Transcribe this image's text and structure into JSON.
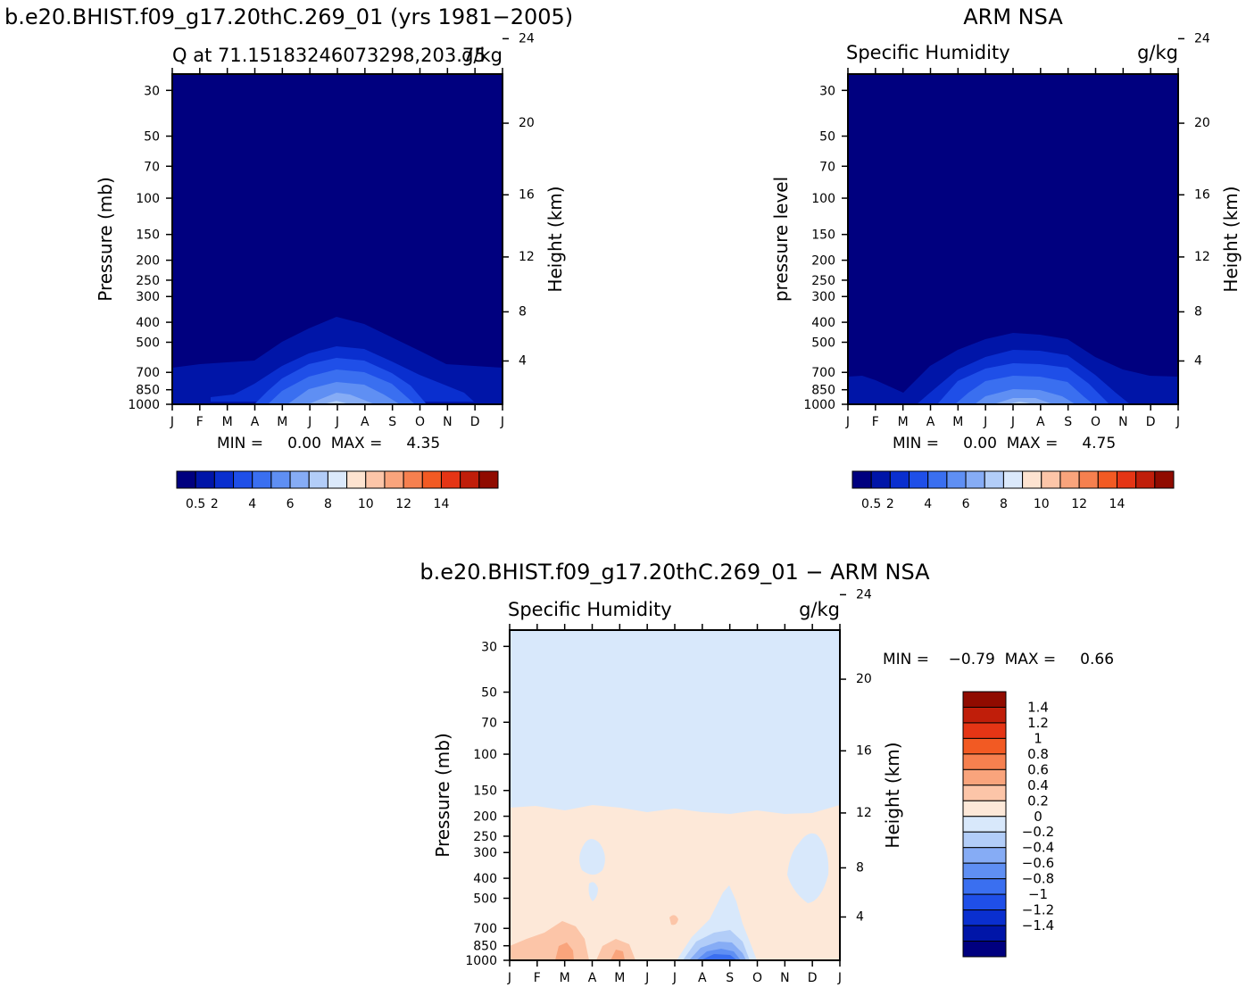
{
  "months": [
    "J",
    "F",
    "M",
    "A",
    "M",
    "J",
    "J",
    "A",
    "S",
    "O",
    "N",
    "D",
    "J"
  ],
  "pressure_ticks": [
    "30",
    "50",
    "70",
    "100",
    "150",
    "200",
    "250",
    "300",
    "400",
    "500",
    "700",
    "850",
    "1000"
  ],
  "height_ticks": [
    "24",
    "20",
    "16",
    "12",
    "8",
    "4"
  ],
  "colors": {
    "abs_levels": [
      "#00007f",
      "#0015a8",
      "#0a2fcf",
      "#1f4fe8",
      "#3a6ff0",
      "#5f8ff3",
      "#86acf5",
      "#b2cdf8",
      "#dbe9fb",
      "#fde3d0",
      "#fcc5a8",
      "#f9a47c",
      "#f6804f",
      "#f25a23",
      "#e53515",
      "#c01e0a",
      "#900b00"
    ],
    "diff_levels": [
      "#00007f",
      "#0015a8",
      "#0a2fcf",
      "#1f4fe8",
      "#3a6ff0",
      "#5f8ff3",
      "#86acf5",
      "#b2cdf8",
      "#d8e8fb",
      "#fde8d8",
      "#fcc5a8",
      "#f9a47c",
      "#f6804f",
      "#f25a23",
      "#e53515",
      "#c01e0a",
      "#900b00"
    ]
  },
  "panels": {
    "model": {
      "title": "b.e20.BHIST.f09_g17.20thC.269_01 (yrs 1981−2005)",
      "subtitle_left": "Q at 71.15183246073298,203.75",
      "subtitle_right": "g/kg",
      "ylabel": "Pressure (mb)",
      "y2label": "Height (km)",
      "minmax": "MIN =     0.00  MAX =     4.35"
    },
    "obs": {
      "title": "ARM NSA",
      "subtitle_left": "Specific Humidity",
      "subtitle_right": "g/kg",
      "ylabel": "pressure level",
      "y2label": "Height (km)",
      "minmax": "MIN =     0.00  MAX =     4.75"
    },
    "diff": {
      "title": "b.e20.BHIST.f09_g17.20thC.269_01 − ARM NSA",
      "subtitle_left": "Specific Humidity",
      "subtitle_right": "g/kg",
      "ylabel": "Pressure (mb)",
      "y2label": "Height (km)",
      "minmax": "MIN =    −0.79  MAX =     0.66"
    }
  },
  "chart_data": [
    {
      "type": "heatmap",
      "title": "b.e20.BHIST.f09_g17.20thC.269_01 (yrs 1981−2005)",
      "subtitle": "Q at 71.15183246073298,203.75",
      "units": "g/kg",
      "xlabel": "",
      "ylabel": "Pressure (mb)",
      "y2label": "Height (km)",
      "x": [
        "J",
        "F",
        "M",
        "A",
        "M",
        "J",
        "J",
        "A",
        "S",
        "O",
        "N",
        "D",
        "J"
      ],
      "y_pressure": [
        30,
        50,
        70,
        100,
        150,
        200,
        250,
        300,
        400,
        500,
        700,
        850,
        1000
      ],
      "y2_height_km": [
        24,
        20,
        16,
        12,
        8,
        4
      ],
      "levels": [
        0.5,
        1,
        1.5,
        2,
        3,
        4,
        5,
        6,
        7,
        8,
        9,
        10,
        11,
        12,
        13,
        14
      ],
      "colorbar_labels": [
        "0.5",
        "2",
        "4",
        "6",
        "8",
        "10",
        "12",
        "14"
      ],
      "min": 0.0,
      "max": 4.35,
      "contour_tops_mb": {
        "0.5": [
          720,
          710,
          700,
          660,
          590,
          520,
          465,
          500,
          575,
          640,
          680,
          690,
          710
        ],
        "1": [
          970,
          965,
          950,
          880,
          760,
          680,
          650,
          670,
          740,
          830,
          900,
          950,
          970
        ],
        "1.5": [
          1000,
          1000,
          1000,
          960,
          840,
          730,
          690,
          710,
          780,
          900,
          1000,
          1000,
          1000
        ],
        "2": [
          1000,
          1000,
          1000,
          1000,
          900,
          790,
          745,
          760,
          830,
          960,
          1000,
          1000,
          1000
        ],
        "3": [
          1000,
          1000,
          1000,
          1000,
          1000,
          900,
          830,
          850,
          940,
          1000,
          1000,
          1000,
          1000
        ],
        "4": [
          1000,
          1000,
          1000,
          1000,
          1000,
          1000,
          940,
          960,
          1000,
          1000,
          1000,
          1000,
          1000
        ]
      }
    },
    {
      "type": "heatmap",
      "title": "ARM NSA",
      "subtitle": "Specific Humidity",
      "units": "g/kg",
      "xlabel": "",
      "ylabel": "pressure level",
      "y2label": "Height (km)",
      "x": [
        "J",
        "F",
        "M",
        "A",
        "M",
        "J",
        "J",
        "A",
        "S",
        "O",
        "N",
        "D",
        "J"
      ],
      "y_pressure": [
        30,
        50,
        70,
        100,
        150,
        200,
        250,
        300,
        400,
        500,
        700,
        850,
        1000
      ],
      "y2_height_km": [
        24,
        20,
        16,
        12,
        8,
        4
      ],
      "levels": [
        0.5,
        1,
        1.5,
        2,
        3,
        4,
        5,
        6,
        7,
        8,
        9,
        10,
        11,
        12,
        13,
        14
      ],
      "colorbar_labels": [
        "0.5",
        "2",
        "4",
        "6",
        "8",
        "10",
        "12",
        "14"
      ],
      "min": 0.0,
      "max": 4.75,
      "contour_tops_mb": {
        "0.5": [
          780,
          790,
          880,
          700,
          590,
          520,
          480,
          490,
          540,
          640,
          740,
          760,
          760
        ],
        "1": [
          1000,
          1000,
          1000,
          900,
          760,
          680,
          650,
          660,
          720,
          840,
          960,
          1000,
          1000
        ],
        "1.5": [
          1000,
          1000,
          1000,
          980,
          850,
          740,
          710,
          720,
          790,
          930,
          1000,
          1000,
          1000
        ],
        "2": [
          1000,
          1000,
          1000,
          1000,
          920,
          800,
          770,
          780,
          850,
          990,
          1000,
          1000,
          1000
        ],
        "3": [
          1000,
          1000,
          1000,
          1000,
          1000,
          910,
          860,
          870,
          950,
          1000,
          1000,
          1000,
          1000
        ],
        "4": [
          1000,
          1000,
          1000,
          1000,
          1000,
          1000,
          950,
          960,
          1000,
          1000,
          1000,
          1000,
          1000
        ]
      }
    },
    {
      "type": "heatmap",
      "title": "b.e20.BHIST.f09_g17.20thC.269_01 − ARM NSA",
      "subtitle": "Specific Humidity",
      "units": "g/kg",
      "xlabel": "",
      "ylabel": "Pressure (mb)",
      "y2label": "Height (km)",
      "x": [
        "J",
        "F",
        "M",
        "A",
        "M",
        "J",
        "J",
        "A",
        "S",
        "O",
        "N",
        "D",
        "J"
      ],
      "y_pressure": [
        30,
        50,
        70,
        100,
        150,
        200,
        250,
        300,
        400,
        500,
        700,
        850,
        1000
      ],
      "y2_height_km": [
        24,
        20,
        16,
        12,
        8,
        4
      ],
      "levels": [
        -1.4,
        -1.2,
        -1,
        -0.8,
        -0.6,
        -0.4,
        -0.2,
        0,
        0.2,
        0.4,
        0.6,
        0.8,
        1,
        1.2,
        1.4
      ],
      "colorbar_labels": [
        "1.4",
        "1.2",
        "1",
        "0.8",
        "0.6",
        "0.4",
        "0.2",
        "0",
        "−0.2",
        "−0.4",
        "−0.6",
        "−0.8",
        "−1",
        "−1.2",
        "−1.4"
      ],
      "min": -0.79,
      "max": 0.66,
      "zero_contour_mb": [
        200,
        195,
        195,
        190,
        185,
        190,
        195,
        195,
        190,
        190,
        200,
        190,
        180
      ],
      "positive_cores": [
        {
          "month": "M",
          "top_mb": 720,
          "value": 0.2
        },
        {
          "month": "M",
          "top_mb": 870,
          "value": 0.4
        },
        {
          "month": "M",
          "top_mb": 860,
          "value": 0.2
        },
        {
          "month": "M",
          "top_mb": 950,
          "value": 0.4
        },
        {
          "month": "J",
          "top_mb": 680,
          "value": 0.2
        }
      ],
      "negative_regions": [
        {
          "months": "A",
          "top_mb": 280,
          "value": -0.2
        },
        {
          "months": "A–S",
          "top_mb": 420,
          "value": -0.2
        },
        {
          "months": "A–S",
          "top_mb": 780,
          "value": -0.4
        },
        {
          "months": "A–S",
          "top_mb": 880,
          "value": -0.6
        },
        {
          "months": "A–S",
          "top_mb": 950,
          "value": -0.8
        },
        {
          "months": "D",
          "top_mb": 240,
          "value": -0.2
        }
      ]
    }
  ]
}
